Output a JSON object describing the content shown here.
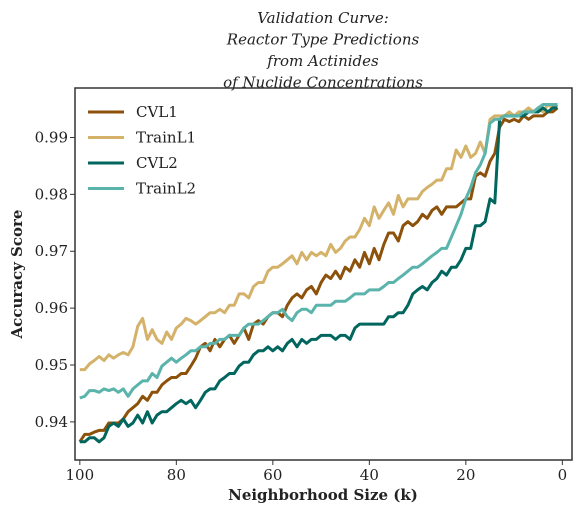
{
  "chart_data": {
    "type": "line",
    "title_lines": [
      "Validation Curve:",
      "Reactor Type Predictions",
      "from Actinides",
      "of Nuclide Concentrations"
    ],
    "xlabel": "Neighborhood Size (k)",
    "ylabel": "Accuracy Score",
    "xlim": [
      101,
      -2
    ],
    "ylim": [
      0.9333,
      0.9987
    ],
    "x_reversed": true,
    "xticks": [
      100,
      80,
      60,
      40,
      20,
      0
    ],
    "yticks": [
      0.94,
      0.95,
      0.96,
      0.97,
      0.98,
      0.99
    ],
    "xtick_labels": [
      "100",
      "80",
      "60",
      "40",
      "20",
      "0"
    ],
    "ytick_labels": [
      "0.94",
      "0.95",
      "0.96",
      "0.97",
      "0.98",
      "0.99"
    ],
    "grid": false,
    "legend_position": "upper-left",
    "x": [
      100,
      99,
      98,
      97,
      96,
      95,
      94,
      93,
      92,
      91,
      90,
      89,
      88,
      87,
      86,
      85,
      84,
      83,
      82,
      81,
      80,
      79,
      78,
      77,
      76,
      75,
      74,
      73,
      72,
      71,
      70,
      69,
      68,
      67,
      66,
      65,
      64,
      63,
      62,
      61,
      60,
      59,
      58,
      57,
      56,
      55,
      54,
      53,
      52,
      51,
      50,
      49,
      48,
      47,
      46,
      45,
      44,
      43,
      42,
      41,
      40,
      39,
      38,
      37,
      36,
      35,
      34,
      33,
      32,
      31,
      30,
      29,
      28,
      27,
      26,
      25,
      24,
      23,
      22,
      21,
      20,
      19,
      18,
      17,
      16,
      15,
      14,
      13,
      12,
      11,
      10,
      9,
      8,
      7,
      6,
      5,
      4,
      3,
      2,
      1
    ],
    "series": [
      {
        "name": "CVL1",
        "color": "#8c510a",
        "values": [
          0.9365,
          0.9378,
          0.9378,
          0.9382,
          0.9385,
          0.9385,
          0.9398,
          0.9398,
          0.9398,
          0.9405,
          0.9418,
          0.9425,
          0.9432,
          0.9445,
          0.9438,
          0.9452,
          0.9452,
          0.9465,
          0.9472,
          0.9478,
          0.9478,
          0.9485,
          0.9485,
          0.9498,
          0.9512,
          0.9532,
          0.9538,
          0.9525,
          0.9545,
          0.9532,
          0.9545,
          0.9552,
          0.9538,
          0.9552,
          0.9565,
          0.9545,
          0.9572,
          0.9578,
          0.9572,
          0.9585,
          0.9592,
          0.9592,
          0.9585,
          0.9605,
          0.9618,
          0.9625,
          0.9618,
          0.9632,
          0.9638,
          0.9625,
          0.9645,
          0.9658,
          0.9652,
          0.9665,
          0.9652,
          0.9672,
          0.9665,
          0.9685,
          0.9672,
          0.9698,
          0.9678,
          0.9705,
          0.9685,
          0.9712,
          0.9732,
          0.9732,
          0.9718,
          0.9745,
          0.9752,
          0.9745,
          0.9752,
          0.9765,
          0.9758,
          0.9772,
          0.9778,
          0.9765,
          0.9778,
          0.9778,
          0.9778,
          0.9785,
          0.9792,
          0.9792,
          0.9832,
          0.9838,
          0.9832,
          0.9858,
          0.9872,
          0.9918,
          0.9932,
          0.9928,
          0.9932,
          0.9928,
          0.9938,
          0.9932,
          0.9938,
          0.9938,
          0.9938,
          0.9945,
          0.9945,
          0.9952
        ]
      },
      {
        "name": "TrainL1",
        "color": "#d4b26a",
        "values": [
          0.9492,
          0.9492,
          0.9502,
          0.9508,
          0.9515,
          0.9508,
          0.9518,
          0.9512,
          0.9518,
          0.9522,
          0.9518,
          0.9532,
          0.9568,
          0.9582,
          0.9545,
          0.9562,
          0.9545,
          0.9538,
          0.9558,
          0.9545,
          0.9565,
          0.9572,
          0.9582,
          0.9578,
          0.9572,
          0.9578,
          0.9585,
          0.9592,
          0.9592,
          0.9598,
          0.9592,
          0.9605,
          0.9605,
          0.9625,
          0.9625,
          0.9618,
          0.9638,
          0.9645,
          0.9645,
          0.9665,
          0.9672,
          0.9672,
          0.9678,
          0.9685,
          0.9692,
          0.9678,
          0.9698,
          0.9685,
          0.9698,
          0.9692,
          0.9698,
          0.9692,
          0.9712,
          0.9698,
          0.9705,
          0.9718,
          0.9725,
          0.9725,
          0.9738,
          0.9758,
          0.9745,
          0.9778,
          0.9758,
          0.9772,
          0.9785,
          0.9765,
          0.9798,
          0.9778,
          0.9792,
          0.9792,
          0.9792,
          0.9805,
          0.9812,
          0.9818,
          0.9825,
          0.9825,
          0.9845,
          0.9845,
          0.9878,
          0.9865,
          0.9885,
          0.9865,
          0.9872,
          0.9892,
          0.9872,
          0.9932,
          0.9938,
          0.9938,
          0.9938,
          0.9945,
          0.9938,
          0.9945,
          0.9945,
          0.9952,
          0.9945,
          0.9952,
          0.9945,
          0.9958,
          0.9952,
          0.9958
        ]
      },
      {
        "name": "CVL2",
        "color": "#01665e",
        "values": [
          0.9365,
          0.9365,
          0.9372,
          0.9372,
          0.9365,
          0.9372,
          0.9392,
          0.9398,
          0.9392,
          0.9405,
          0.9392,
          0.9398,
          0.9412,
          0.9398,
          0.9418,
          0.9398,
          0.9412,
          0.9418,
          0.9418,
          0.9425,
          0.9432,
          0.9438,
          0.9432,
          0.9438,
          0.9425,
          0.9438,
          0.9452,
          0.9458,
          0.9458,
          0.9472,
          0.9478,
          0.9485,
          0.9485,
          0.9498,
          0.9505,
          0.9505,
          0.9518,
          0.9525,
          0.9525,
          0.9532,
          0.9525,
          0.9532,
          0.9525,
          0.9538,
          0.9545,
          0.9532,
          0.9545,
          0.9538,
          0.9545,
          0.9545,
          0.9552,
          0.9552,
          0.9552,
          0.9545,
          0.9552,
          0.9552,
          0.9545,
          0.9565,
          0.9572,
          0.9572,
          0.9572,
          0.9572,
          0.9572,
          0.9572,
          0.9585,
          0.9585,
          0.9592,
          0.9592,
          0.9605,
          0.9625,
          0.9632,
          0.9638,
          0.9632,
          0.9645,
          0.9652,
          0.9665,
          0.9658,
          0.9672,
          0.9672,
          0.9685,
          0.9705,
          0.9705,
          0.9745,
          0.9745,
          0.9752,
          0.9792,
          0.9785,
          0.9932,
          0.9938,
          0.9938,
          0.9938,
          0.9938,
          0.9938,
          0.9945,
          0.9945,
          0.9945,
          0.9952,
          0.9945,
          0.9952,
          0.9952
        ]
      },
      {
        "name": "TrainL2",
        "color": "#5ab4ac",
        "values": [
          0.9442,
          0.9445,
          0.9455,
          0.9455,
          0.9452,
          0.9458,
          0.9455,
          0.9458,
          0.9452,
          0.9458,
          0.9445,
          0.9458,
          0.9465,
          0.9472,
          0.9472,
          0.9485,
          0.9478,
          0.9498,
          0.9505,
          0.9512,
          0.9505,
          0.9512,
          0.9518,
          0.9525,
          0.9525,
          0.9532,
          0.9532,
          0.9538,
          0.9538,
          0.9545,
          0.9545,
          0.9552,
          0.9552,
          0.9552,
          0.9565,
          0.9572,
          0.9572,
          0.9572,
          0.9578,
          0.9585,
          0.9592,
          0.9592,
          0.9598,
          0.9585,
          0.9578,
          0.9592,
          0.9598,
          0.9598,
          0.9592,
          0.9605,
          0.9605,
          0.9605,
          0.9605,
          0.9612,
          0.9612,
          0.9612,
          0.9618,
          0.9625,
          0.9625,
          0.9625,
          0.9632,
          0.9632,
          0.9632,
          0.9638,
          0.9645,
          0.9645,
          0.9652,
          0.9658,
          0.9665,
          0.9672,
          0.9672,
          0.9678,
          0.9685,
          0.9692,
          0.9698,
          0.9705,
          0.9705,
          0.9725,
          0.9745,
          0.9765,
          0.9792,
          0.9812,
          0.9838,
          0.9852,
          0.9872,
          0.9925,
          0.9932,
          0.9932,
          0.9938,
          0.9938,
          0.9938,
          0.9938,
          0.9945,
          0.9945,
          0.9945,
          0.9952,
          0.9958,
          0.9958,
          0.9958,
          0.9958
        ]
      }
    ]
  }
}
